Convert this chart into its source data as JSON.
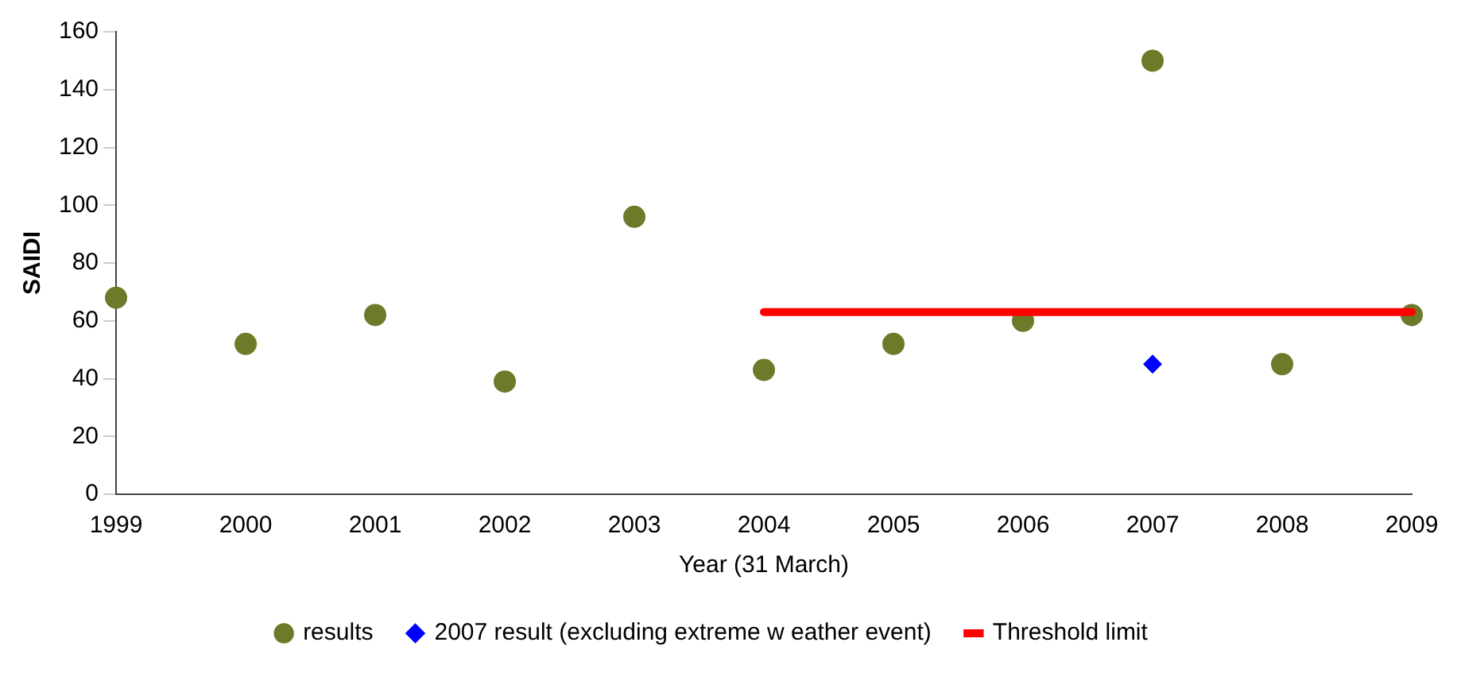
{
  "chart_data": {
    "type": "scatter",
    "xlabel": "Year (31 March)",
    "ylabel": "SAIDI",
    "x": [
      1999,
      2000,
      2001,
      2002,
      2003,
      2004,
      2005,
      2006,
      2007,
      2008,
      2009
    ],
    "xlim": [
      1999,
      2009
    ],
    "xticks": [
      1999,
      2000,
      2001,
      2002,
      2003,
      2004,
      2005,
      2006,
      2007,
      2008,
      2009
    ],
    "ylim": [
      0,
      160
    ],
    "yticks": [
      0,
      20,
      40,
      60,
      80,
      100,
      120,
      140,
      160
    ],
    "grid": false,
    "legend": "bottom",
    "marker": "circle",
    "series": [
      {
        "name": "results",
        "color": "#6b7b2a",
        "values": [
          68,
          52,
          62,
          39,
          96,
          43,
          52,
          60,
          150,
          45,
          62
        ]
      },
      {
        "name": "2007 result (excluding extreme w eather event)",
        "marker": "diamond",
        "color": "#0000ff",
        "x": [
          2007
        ],
        "values": [
          45
        ]
      },
      {
        "name": "Threshold limit",
        "type": "line",
        "marker": "none",
        "line_style": "solid",
        "color": "#ff0000",
        "x": [
          2004,
          2009
        ],
        "values": [
          63,
          63
        ]
      }
    ]
  }
}
